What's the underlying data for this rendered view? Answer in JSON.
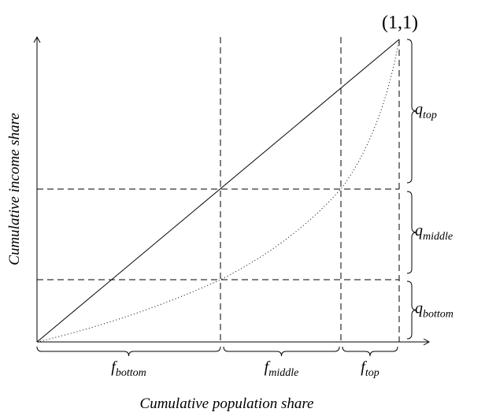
{
  "point_label": "(1,1)",
  "x_axis_label": "Cumulative population share",
  "y_axis_label": "Cumulative income share",
  "x_braces": [
    {
      "symbol": "f",
      "subscript": "bottom"
    },
    {
      "symbol": "f",
      "subscript": "middle"
    },
    {
      "symbol": "f",
      "subscript": "top"
    }
  ],
  "y_braces": [
    {
      "symbol": "q",
      "subscript": "top"
    },
    {
      "symbol": "q",
      "subscript": "middle"
    },
    {
      "symbol": "q",
      "subscript": "bottom"
    }
  ]
}
